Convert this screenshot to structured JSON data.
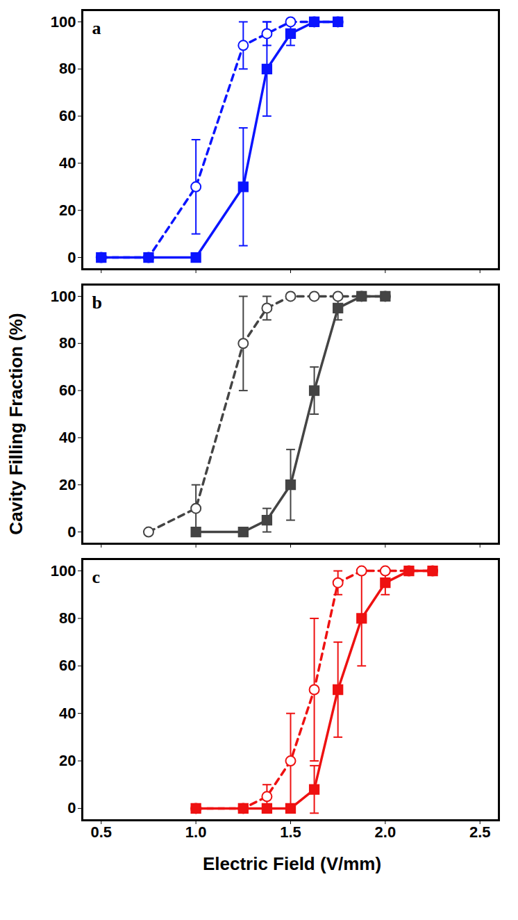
{
  "chart_data": {
    "type": "line",
    "x_label": "Electric Field (V/mm)",
    "y_label": "Cavity Filling Fraction (%)",
    "xlim": [
      0.4,
      2.6
    ],
    "xticks": [
      {
        "value": 0.5,
        "label": "0.5"
      },
      {
        "value": 1.0,
        "label": "1.0"
      },
      {
        "value": 1.5,
        "label": "1.5"
      },
      {
        "value": 2.0,
        "label": "2.0"
      },
      {
        "value": 2.5,
        "label": "2.5"
      }
    ],
    "ylim": [
      -5,
      105
    ],
    "yticks": [
      0,
      20,
      40,
      60,
      80,
      100
    ],
    "panels": [
      {
        "title": "a",
        "x": [
          0.5,
          0.75,
          1.0,
          1.25,
          1.375,
          1.5,
          1.625,
          1.75
        ],
        "series": [
          {
            "color": "#0a14ff",
            "marker": "circle-open",
            "line_style": "dashed",
            "values": [
              0,
              0,
              30,
              90,
              95,
              100,
              100,
              100
            ],
            "error": [
              null,
              null,
              20,
              10,
              5,
              null,
              null,
              null
            ]
          },
          {
            "color": "#0a14ff",
            "marker": "square",
            "line_style": "solid",
            "values": [
              0,
              0,
              0,
              30,
              80,
              95,
              100,
              100
            ],
            "error": [
              null,
              null,
              null,
              25,
              20,
              5,
              null,
              null
            ]
          }
        ]
      },
      {
        "title": "b",
        "x": [
          0.75,
          1.0,
          1.25,
          1.375,
          1.5,
          1.625,
          1.75,
          1.875,
          2.0
        ],
        "series": [
          {
            "color": "#444444",
            "marker": "circle-open",
            "line_style": "dashed",
            "values": [
              0,
              10,
              80,
              95,
              100,
              100,
              100,
              100,
              100
            ],
            "error": [
              null,
              10,
              20,
              5,
              null,
              null,
              null,
              null,
              null
            ]
          },
          {
            "color": "#444444",
            "marker": "square",
            "line_style": "solid",
            "values": [
              null,
              0,
              0,
              5,
              20,
              60,
              95,
              100,
              100
            ],
            "error": [
              null,
              null,
              null,
              5,
              15,
              10,
              5,
              null,
              null
            ]
          }
        ]
      },
      {
        "title": "c",
        "x": [
          1.0,
          1.25,
          1.375,
          1.5,
          1.625,
          1.75,
          1.875,
          2.0,
          2.125,
          2.25
        ],
        "series": [
          {
            "color": "#ee1111",
            "marker": "circle-open",
            "line_style": "dashed",
            "values": [
              0,
              0,
              5,
              20,
              50,
              95,
              100,
              100,
              100,
              100
            ],
            "error": [
              null,
              null,
              5,
              20,
              30,
              5,
              null,
              null,
              null,
              null
            ]
          },
          {
            "color": "#ee1111",
            "marker": "square",
            "line_style": "solid",
            "values": [
              0,
              0,
              0,
              0,
              8,
              50,
              80,
              95,
              100,
              100
            ],
            "error": [
              null,
              null,
              null,
              null,
              10,
              20,
              20,
              5,
              null,
              null
            ]
          }
        ]
      }
    ]
  }
}
